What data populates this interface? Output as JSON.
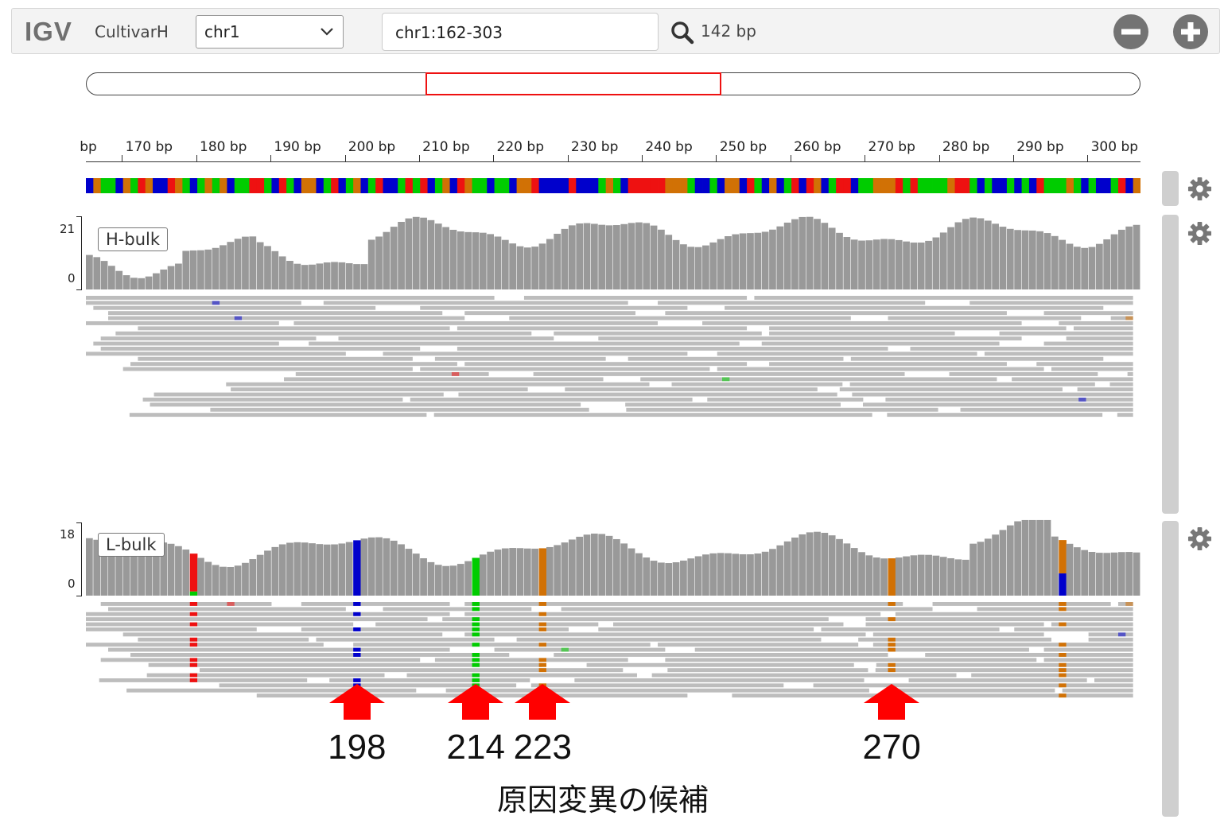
{
  "app": {
    "logo": "IGV",
    "genome": "CultivarH"
  },
  "navbar": {
    "chromosome": "chr1",
    "locus": "chr1:162-303",
    "window_size": "142 bp"
  },
  "ruler": {
    "start": 162,
    "end": 303,
    "ticks": [
      "170 bp",
      "180 bp",
      "190 bp",
      "200 bp",
      "210 bp",
      "220 bp",
      "230 bp",
      "240 bp",
      "250 bp",
      "260 bp",
      "270 bp",
      "280 bp",
      "290 bp",
      "300 bp"
    ],
    "left_partial": "bp"
  },
  "tracks": [
    {
      "name": "H-bulk",
      "scale_max": "21",
      "scale_min": "0"
    },
    {
      "name": "L-bulk",
      "scale_max": "18",
      "scale_min": "0"
    }
  ],
  "candidates": [
    {
      "position": 198,
      "label": "198"
    },
    {
      "position": 214,
      "label": "214"
    },
    {
      "position": 223,
      "label": "223"
    },
    {
      "position": 270,
      "label": "270"
    }
  ],
  "caption": "原因変異の候補",
  "colors": {
    "A": "#00cc00",
    "C": "#0000cc",
    "G": "#d17105",
    "T": "#ee1111",
    "coverage": "#999999",
    "read": "#bdbdbd",
    "highlight": "#ff0000"
  }
}
